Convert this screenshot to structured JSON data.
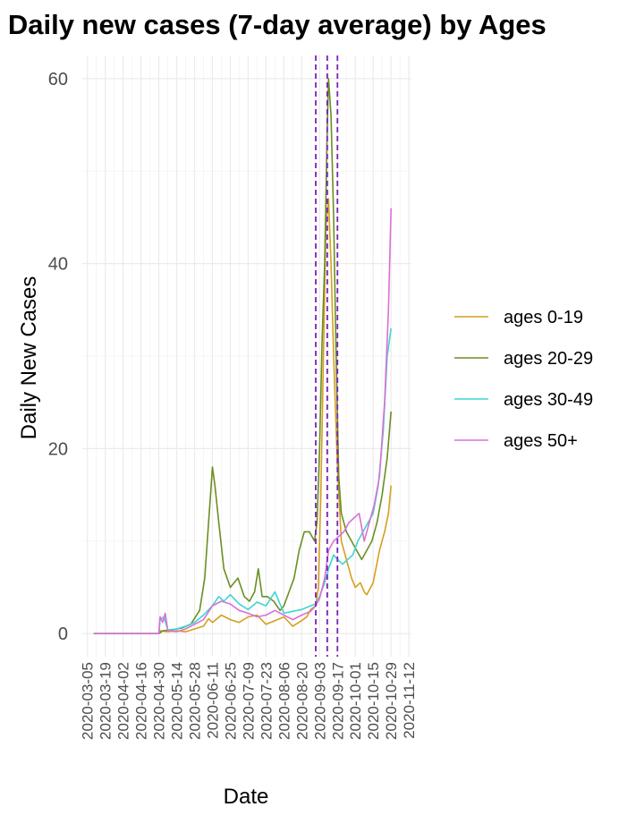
{
  "chart_data": {
    "type": "line",
    "title": "e Daily new cases (7-day average) by Ages",
    "xlabel": "Date",
    "ylabel": "Daily New Cases",
    "xlim": [
      "2020-03-01",
      "2020-11-14"
    ],
    "ylim": [
      -2.5,
      62.5
    ],
    "y_ticks": [
      0,
      20,
      40,
      60
    ],
    "x_ticks": [
      "2020-03-05",
      "2020-03-19",
      "2020-04-02",
      "2020-04-16",
      "2020-04-30",
      "2020-05-14",
      "2020-05-28",
      "2020-06-11",
      "2020-06-25",
      "2020-07-09",
      "2020-07-23",
      "2020-08-06",
      "2020-08-20",
      "2020-09-03",
      "2020-09-17",
      "2020-10-01",
      "2020-10-15",
      "2020-10-29",
      "2020-11-12"
    ],
    "grid": true,
    "legend_position": "right",
    "vlines": {
      "dates": [
        "2020-08-31",
        "2020-09-09",
        "2020-09-17"
      ],
      "color": "#7a22b8",
      "style": "dashed"
    },
    "series": [
      {
        "name": "ages 0-19",
        "color": "#d4a020",
        "x": [
          "2020-03-10",
          "2020-04-30",
          "2020-05-01",
          "2020-05-07",
          "2020-05-14",
          "2020-05-21",
          "2020-05-28",
          "2020-06-04",
          "2020-06-08",
          "2020-06-11",
          "2020-06-18",
          "2020-06-25",
          "2020-07-02",
          "2020-07-09",
          "2020-07-16",
          "2020-07-23",
          "2020-07-30",
          "2020-08-06",
          "2020-08-13",
          "2020-08-20",
          "2020-08-24",
          "2020-08-27",
          "2020-08-31",
          "2020-09-02",
          "2020-09-04",
          "2020-09-06",
          "2020-09-08",
          "2020-09-10",
          "2020-09-12",
          "2020-09-14",
          "2020-09-17",
          "2020-09-20",
          "2020-09-24",
          "2020-09-28",
          "2020-10-01",
          "2020-10-05",
          "2020-10-08",
          "2020-10-10",
          "2020-10-15",
          "2020-10-20",
          "2020-10-24",
          "2020-10-27",
          "2020-10-29"
        ],
        "y": [
          0,
          0,
          0.3,
          0.2,
          0.3,
          0.2,
          0.5,
          0.8,
          1.6,
          1.2,
          2.0,
          1.5,
          1.2,
          1.8,
          2.0,
          1.0,
          1.4,
          1.8,
          0.8,
          1.4,
          1.8,
          2.6,
          3.0,
          5.0,
          15,
          30,
          44,
          47,
          40,
          30,
          18,
          10,
          8,
          6,
          5,
          5.5,
          4.5,
          4.2,
          5.5,
          9,
          11,
          13,
          16
        ]
      },
      {
        "name": "ages 20-29",
        "color": "#6b8e23",
        "x": [
          "2020-03-10",
          "2020-04-30",
          "2020-05-03",
          "2020-05-10",
          "2020-05-18",
          "2020-05-25",
          "2020-06-01",
          "2020-06-05",
          "2020-06-08",
          "2020-06-10",
          "2020-06-11",
          "2020-06-13",
          "2020-06-16",
          "2020-06-20",
          "2020-06-25",
          "2020-07-01",
          "2020-07-06",
          "2020-07-10",
          "2020-07-14",
          "2020-07-17",
          "2020-07-20",
          "2020-07-24",
          "2020-07-29",
          "2020-08-03",
          "2020-08-06",
          "2020-08-10",
          "2020-08-14",
          "2020-08-18",
          "2020-08-22",
          "2020-08-26",
          "2020-08-30",
          "2020-09-01",
          "2020-09-03",
          "2020-09-05",
          "2020-09-07",
          "2020-09-09",
          "2020-09-10",
          "2020-09-12",
          "2020-09-14",
          "2020-09-16",
          "2020-09-18",
          "2020-09-20",
          "2020-09-24",
          "2020-09-28",
          "2020-10-02",
          "2020-10-06",
          "2020-10-10",
          "2020-10-14",
          "2020-10-18",
          "2020-10-22",
          "2020-10-26",
          "2020-10-29"
        ],
        "y": [
          0,
          0,
          0.3,
          0.4,
          0.6,
          1.0,
          2.5,
          6,
          12,
          16,
          18,
          16,
          12,
          7,
          5,
          6,
          4,
          3.5,
          4.5,
          7,
          4,
          4,
          3.5,
          2.5,
          3,
          4.5,
          6,
          9,
          11,
          11,
          10,
          12,
          20,
          32,
          40,
          55,
          60,
          56,
          45,
          30,
          17,
          13,
          11,
          10,
          9,
          8,
          9,
          10,
          12,
          15,
          19,
          24
        ]
      },
      {
        "name": "ages 30-49",
        "color": "#3fd5d0",
        "x": [
          "2020-03-10",
          "2020-04-30",
          "2020-05-01",
          "2020-05-04",
          "2020-05-07",
          "2020-05-14",
          "2020-05-21",
          "2020-05-28",
          "2020-06-04",
          "2020-06-11",
          "2020-06-16",
          "2020-06-20",
          "2020-06-25",
          "2020-07-02",
          "2020-07-09",
          "2020-07-16",
          "2020-07-23",
          "2020-07-30",
          "2020-08-06",
          "2020-08-13",
          "2020-08-20",
          "2020-08-27",
          "2020-08-31",
          "2020-09-03",
          "2020-09-07",
          "2020-09-10",
          "2020-09-14",
          "2020-09-17",
          "2020-09-21",
          "2020-09-25",
          "2020-09-29",
          "2020-10-03",
          "2020-10-07",
          "2020-10-11",
          "2020-10-15",
          "2020-10-19",
          "2020-10-23",
          "2020-10-26",
          "2020-10-29"
        ],
        "y": [
          0,
          0,
          1.5,
          1.8,
          0.4,
          0.5,
          0.8,
          1.2,
          2.0,
          3.0,
          4.0,
          3.5,
          4.2,
          3.2,
          2.6,
          3.4,
          3.0,
          4.5,
          2.2,
          2.4,
          2.6,
          3.0,
          3.2,
          4.0,
          5.5,
          7.0,
          8.5,
          8.0,
          7.5,
          8.0,
          8.5,
          10,
          11,
          12,
          13,
          16,
          22,
          30,
          33
        ]
      },
      {
        "name": "ages 50+",
        "color": "#da70d6",
        "x": [
          "2020-03-10",
          "2020-04-30",
          "2020-05-01",
          "2020-05-03",
          "2020-05-05",
          "2020-05-07",
          "2020-05-14",
          "2020-05-21",
          "2020-05-28",
          "2020-06-04",
          "2020-06-11",
          "2020-06-18",
          "2020-06-25",
          "2020-07-02",
          "2020-07-09",
          "2020-07-16",
          "2020-07-23",
          "2020-07-30",
          "2020-08-06",
          "2020-08-13",
          "2020-08-20",
          "2020-08-27",
          "2020-08-31",
          "2020-09-03",
          "2020-09-07",
          "2020-09-10",
          "2020-09-14",
          "2020-09-18",
          "2020-09-22",
          "2020-09-26",
          "2020-09-30",
          "2020-10-04",
          "2020-10-08",
          "2020-10-12",
          "2020-10-16",
          "2020-10-20",
          "2020-10-24",
          "2020-10-27",
          "2020-10-29"
        ],
        "y": [
          0,
          0,
          1.8,
          1.2,
          2.2,
          0.3,
          0.2,
          0.5,
          1.0,
          1.5,
          3.0,
          3.5,
          3.2,
          2.5,
          2.2,
          1.8,
          2.0,
          2.5,
          2.0,
          1.5,
          2.0,
          2.4,
          3.0,
          3.8,
          6.0,
          9.0,
          10,
          10.5,
          11,
          12,
          12.5,
          13,
          10,
          12,
          14,
          17,
          25,
          35,
          46
        ]
      }
    ]
  }
}
